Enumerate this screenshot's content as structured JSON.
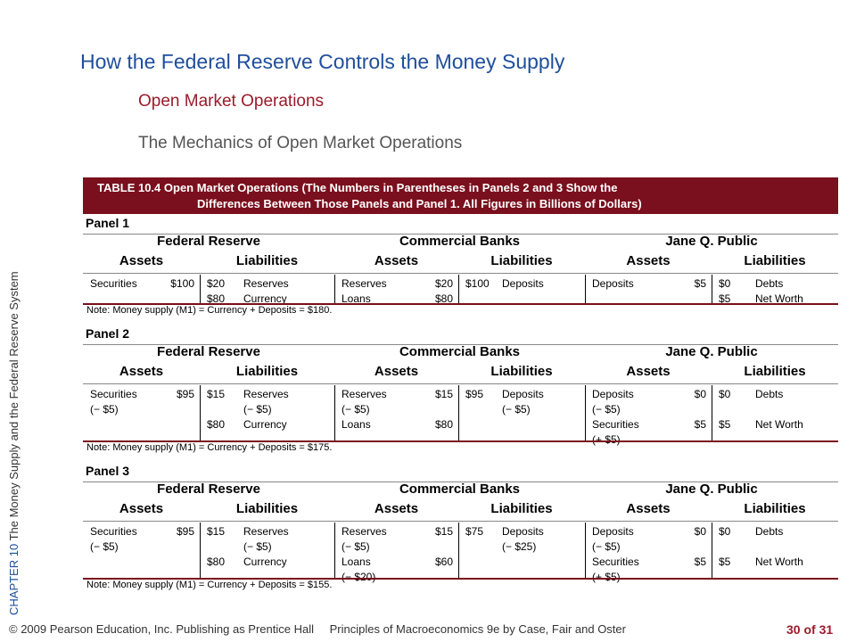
{
  "sidebar": {
    "chapter": "CHAPTER 10",
    "subject": "The Money Supply and the Federal Reserve System"
  },
  "header": {
    "title": "How the Federal Reserve Controls the Money Supply",
    "subtitle1": "Open Market Operations",
    "subtitle2": "The Mechanics of Open Market Operations"
  },
  "table": {
    "caption_line1": "TABLE 10.4  Open Market Operations (The Numbers in Parentheses in Panels 2 and 3 Show the",
    "caption_line2": "Differences Between Those Panels and Panel 1. All Figures in Billions of Dollars)",
    "groups": [
      "Federal Reserve",
      "Commercial Banks",
      "Jane Q. Public"
    ],
    "subheaders": [
      "Assets",
      "Liabilities",
      "Assets",
      "Liabilities",
      "Assets",
      "Liabilities"
    ],
    "panels": [
      {
        "title": "Panel 1",
        "note": "Note:  Money supply (M1) = Currency + Deposits = $180.",
        "cols": [
          {
            "l": [
              "Securities"
            ],
            "r": [
              "$100"
            ]
          },
          {
            "l": [
              "$20",
              "$80"
            ],
            "r": [
              "Reserves",
              "Currency"
            ]
          },
          {
            "l": [
              "Reserves",
              "Loans"
            ],
            "r": [
              "$20",
              "$80"
            ]
          },
          {
            "l": [
              "$100"
            ],
            "r": [
              "Deposits"
            ]
          },
          {
            "l": [
              "Deposits"
            ],
            "r": [
              "$5"
            ]
          },
          {
            "l": [
              "$0",
              "$5"
            ],
            "r": [
              "Debts",
              "Net Worth"
            ]
          }
        ]
      },
      {
        "title": "Panel 2",
        "note": "Note:  Money supply (M1) = Currency + Deposits = $175.",
        "cols": [
          {
            "l": [
              "Securities",
              "(− $5)"
            ],
            "r": [
              "$95"
            ]
          },
          {
            "l": [
              "$15",
              "",
              "$80"
            ],
            "r": [
              "Reserves",
              "(− $5)",
              "Currency"
            ]
          },
          {
            "l": [
              "Reserves",
              " (− $5)",
              "Loans"
            ],
            "r": [
              "$15",
              "",
              "$80"
            ]
          },
          {
            "l": [
              "$95"
            ],
            "r": [
              "Deposits",
              "(− $5)"
            ]
          },
          {
            "l": [
              "Deposits",
              " (− $5)",
              "Securities",
              "(+ $5)"
            ],
            "r": [
              "$0",
              "",
              "$5"
            ]
          },
          {
            "l": [
              "$0",
              "",
              "$5"
            ],
            "r": [
              "Debts",
              "",
              "Net Worth"
            ]
          }
        ]
      },
      {
        "title": "Panel 3",
        "note": "Note:  Money supply (M1) = Currency + Deposits = $155.",
        "cols": [
          {
            "l": [
              "Securities",
              "(− $5)"
            ],
            "r": [
              "$95"
            ]
          },
          {
            "l": [
              "$15",
              "",
              "$80"
            ],
            "r": [
              "Reserves",
              "(− $5)",
              "Currency"
            ]
          },
          {
            "l": [
              "Reserves",
              " (− $5)",
              "Loans",
              "(− $20)"
            ],
            "r": [
              "$15",
              "",
              "$60"
            ]
          },
          {
            "l": [
              "$75"
            ],
            "r": [
              "Deposits",
              "(− $25)"
            ]
          },
          {
            "l": [
              "Deposits",
              " (− $5)",
              "Securities",
              "(+ $5)"
            ],
            "r": [
              "$0",
              "",
              "$5"
            ]
          },
          {
            "l": [
              "$0",
              "",
              "$5"
            ],
            "r": [
              "Debts",
              "",
              "Net Worth"
            ]
          }
        ]
      }
    ]
  },
  "footer": {
    "copyright": "© 2009 Pearson Education, Inc. Publishing as Prentice Hall",
    "book": "Principles of Macroeconomics 9e by Case, Fair and Oster",
    "page": "30 of 31"
  }
}
